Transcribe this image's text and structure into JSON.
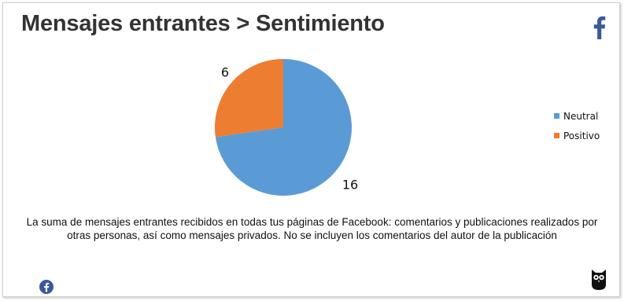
{
  "title": "Mensajes entrantes > Sentimiento",
  "description": "La suma de mensajes entrantes recibidos en todas tus páginas de Facebook: comentarios y publicaciones realizados por otras personas, así como mensajes privados. No se incluyen los comentarios del autor de la publicación",
  "icons": {
    "top_right": "facebook-f-icon",
    "bottom_left": "facebook-circle-icon",
    "bottom_right": "hootsuite-owl-icon"
  },
  "colors": {
    "neutral": "#5b9bd5",
    "positive": "#ed7d31",
    "facebook": "#3b5998"
  },
  "chart_data": {
    "type": "pie",
    "slices": [
      {
        "label": "Neutral",
        "value": 16,
        "color": "#5b9bd5"
      },
      {
        "label": "Positivo",
        "value": 6,
        "color": "#ed7d31"
      }
    ],
    "data_labels": [
      "16",
      "6"
    ],
    "legend": [
      "Neutral",
      "Positivo"
    ],
    "legend_position": "right"
  }
}
